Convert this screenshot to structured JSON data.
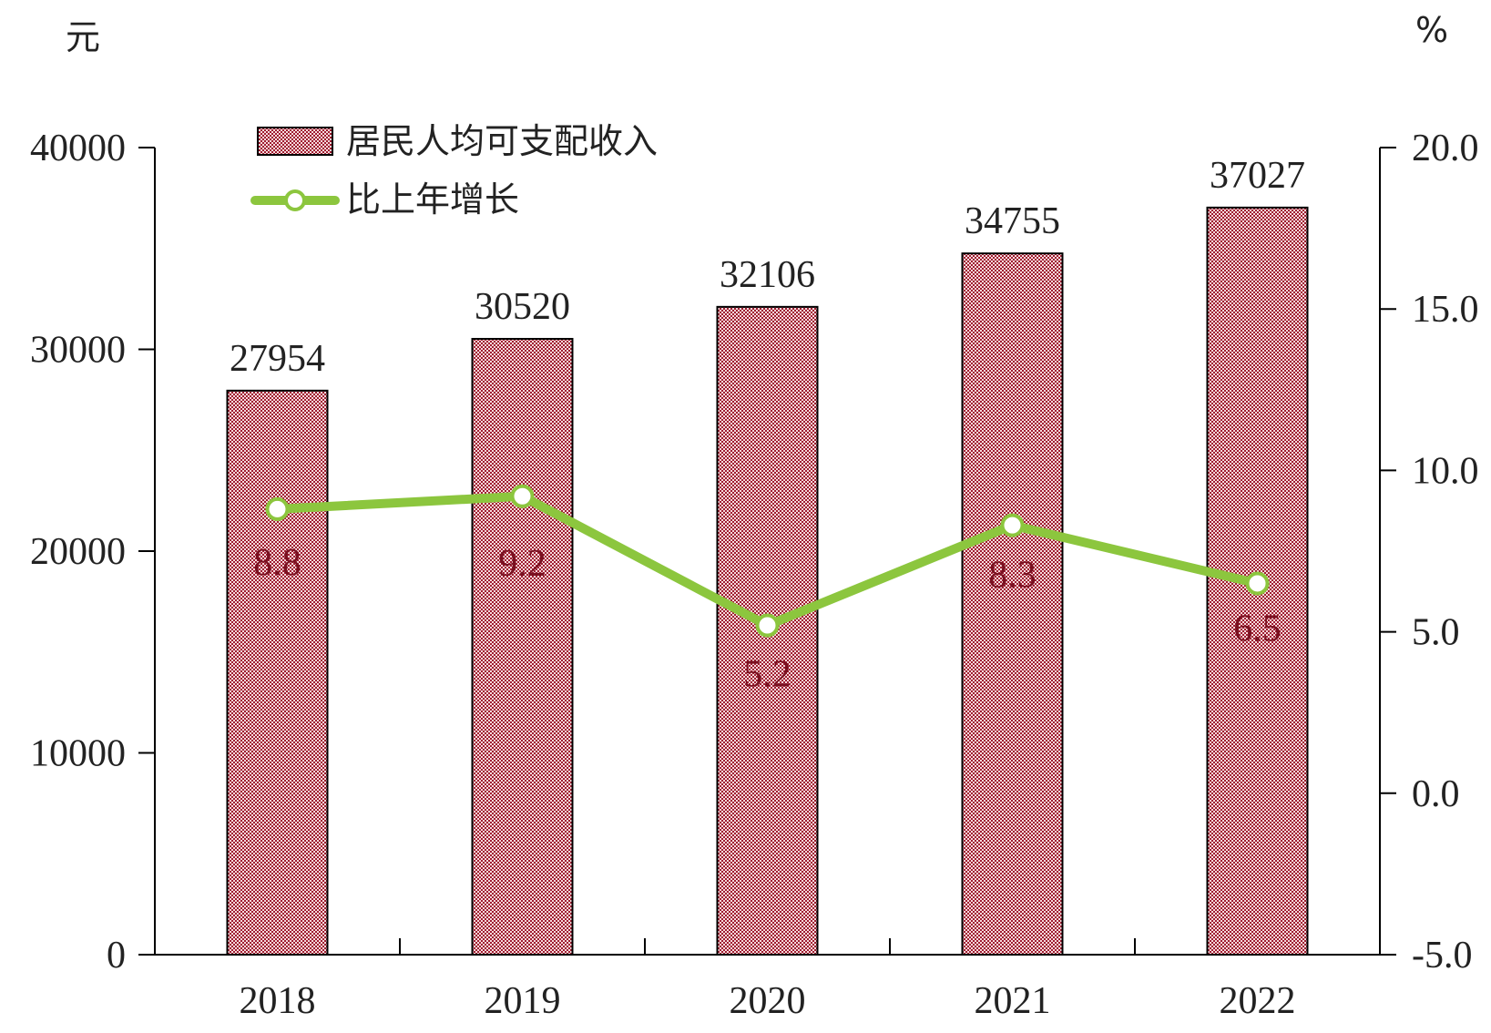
{
  "chart_data": {
    "type": "bar",
    "categories": [
      "2018",
      "2019",
      "2020",
      "2021",
      "2022"
    ],
    "series": [
      {
        "name": "居民人均可支配收入",
        "type": "bar",
        "axis": "left",
        "values": [
          27954,
          30520,
          32106,
          34755,
          37027
        ],
        "color": "#c0505a"
      },
      {
        "name": "比上年增长",
        "type": "line",
        "axis": "right",
        "values": [
          8.8,
          9.2,
          5.2,
          8.3,
          6.5
        ],
        "color": "#8cc63e"
      }
    ],
    "y_left": {
      "unit": "元",
      "ylim": [
        0,
        40000
      ],
      "ticks": [
        "0",
        "10000",
        "20000",
        "30000",
        "40000"
      ]
    },
    "y_right": {
      "unit": "%",
      "ylim": [
        -5,
        20
      ],
      "ticks": [
        "-5.0",
        "0.0",
        "5.0",
        "10.0",
        "15.0",
        "20.0"
      ]
    },
    "legend_position": "top-left",
    "grid": false
  }
}
